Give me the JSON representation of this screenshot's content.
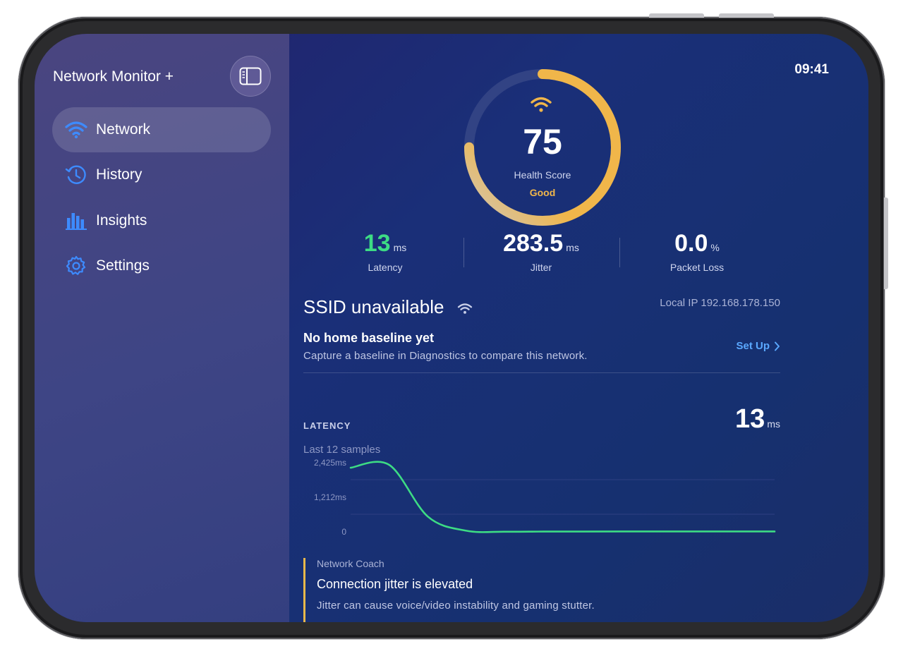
{
  "app": {
    "title": "Network Monitor +"
  },
  "sidebar": {
    "items": [
      {
        "label": "Network",
        "icon": "wifi-icon",
        "active": true
      },
      {
        "label": "History",
        "icon": "history-icon",
        "active": false
      },
      {
        "label": "Insights",
        "icon": "bar-chart-icon",
        "active": false
      },
      {
        "label": "Settings",
        "icon": "gear-icon",
        "active": false
      }
    ]
  },
  "status": {
    "time": "09:41",
    "charging": true
  },
  "health": {
    "score": "75",
    "score_fraction": 0.75,
    "label": "Health Score",
    "status": "Good"
  },
  "stats": {
    "latency": {
      "value": "13",
      "unit": "ms",
      "label": "Latency"
    },
    "jitter": {
      "value": "283.5",
      "unit": "ms",
      "label": "Jitter"
    },
    "packet_loss": {
      "value": "0.0",
      "unit": "%",
      "label": "Packet Loss"
    }
  },
  "network": {
    "ssid": "SSID unavailable",
    "local_ip": "Local IP 192.168.178.150",
    "baseline_title": "No home baseline yet",
    "baseline_subtitle": "Capture a baseline in Diagnostics to compare this network.",
    "setup_label": "Set Up"
  },
  "latency_card": {
    "title": "LATENCY",
    "value": "13",
    "unit": "ms",
    "subtitle": "Last 12 samples"
  },
  "chart_data": {
    "type": "line",
    "y_ticks": [
      "2,425ms",
      "1,212ms",
      "0"
    ],
    "ylim": [
      0,
      2425
    ],
    "x": [
      1,
      2,
      3,
      4,
      5,
      6,
      7,
      8,
      9,
      10,
      11,
      12
    ],
    "series": [
      {
        "values": [
          2250,
          2350,
          540,
          40,
          5,
          10,
          12,
          13,
          13,
          13,
          13,
          13
        ]
      }
    ],
    "colors": {
      "line": "#3ddc84",
      "grid": "#2e3f82"
    }
  },
  "coach": {
    "tag": "Network Coach",
    "title": "Connection jitter is elevated",
    "body": "Jitter can cause voice/video instability and gaming stutter."
  },
  "colors": {
    "accent_orange": "#f0b64a",
    "latency_green": "#3ddc84",
    "link_blue": "#5aa8ff",
    "icon_blue": "#3d8bff"
  }
}
